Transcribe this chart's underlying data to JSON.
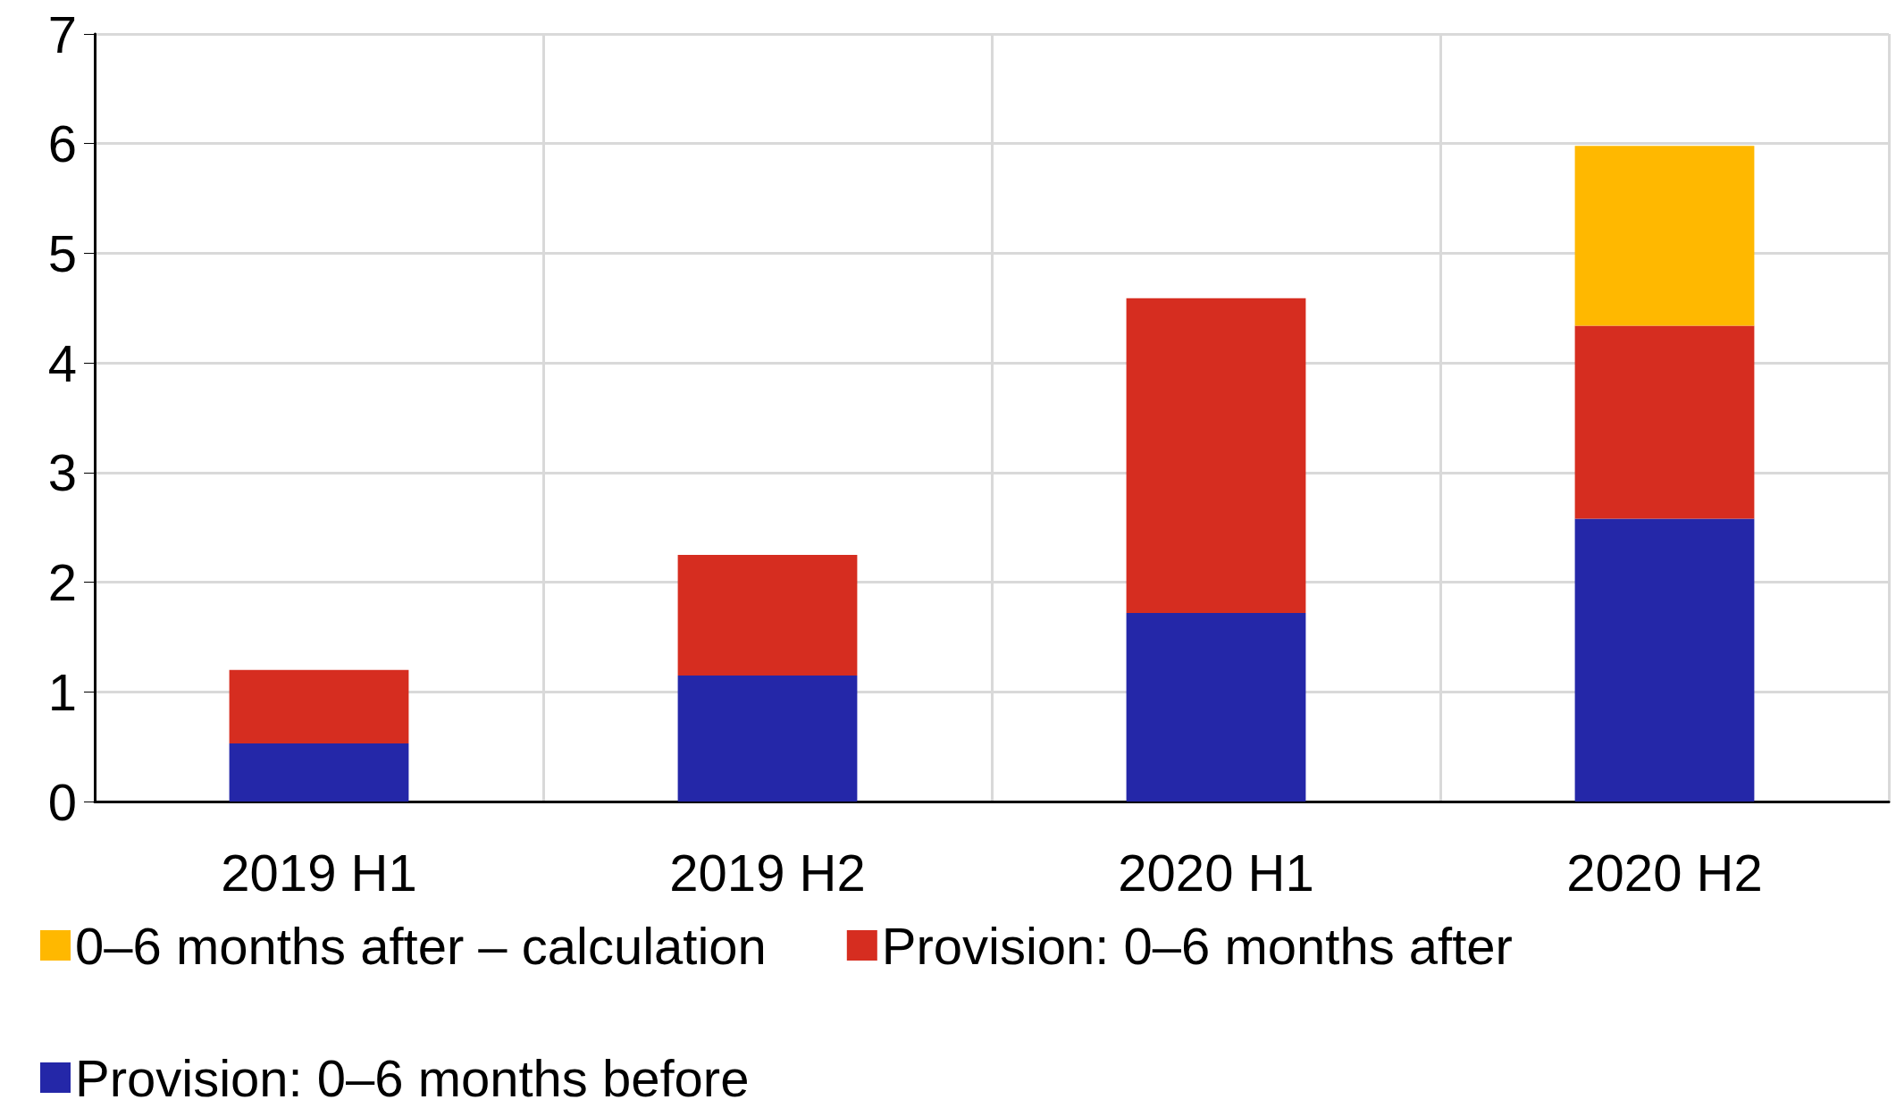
{
  "chart_data": {
    "type": "bar",
    "stacked": true,
    "categories": [
      "2019 H1",
      "2019 H2",
      "2020 H1",
      "2020 H2"
    ],
    "series": [
      {
        "name": "Provision: 0–6 months before",
        "color": "#2427a8",
        "values": [
          0.53,
          1.15,
          1.72,
          2.58
        ]
      },
      {
        "name": "Provision: 0–6 months after",
        "color": "#d62d20",
        "values": [
          0.67,
          1.1,
          2.87,
          1.76
        ]
      },
      {
        "name": "0–6 months after – calculation",
        "color": "#ffb800",
        "values": [
          null,
          null,
          null,
          1.64
        ]
      }
    ],
    "ylim": [
      0,
      7
    ],
    "yticks": [
      0,
      1,
      2,
      3,
      4,
      5,
      6,
      7
    ],
    "grid": true,
    "legend": "bottom"
  }
}
